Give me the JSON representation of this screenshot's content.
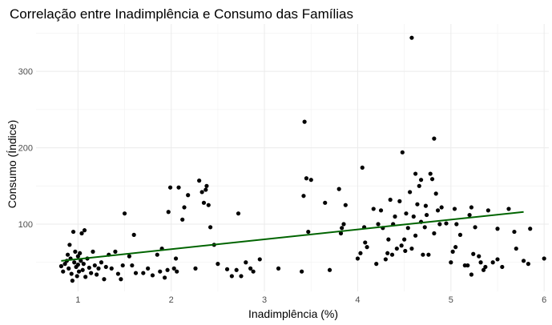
{
  "chart_data": {
    "type": "scatter",
    "title": "Correlação entre Inadimplência e Consumo das Famílias",
    "xlabel": "Inadimplência (%)",
    "ylabel": "Consumo (Índice)",
    "xlim": [
      0.55,
      6.05
    ],
    "ylim": [
      12,
      362
    ],
    "x_ticks": [
      1,
      2,
      3,
      4,
      5,
      6
    ],
    "y_ticks": [
      100,
      200,
      300
    ],
    "grid": true,
    "legend": "none",
    "point_color": "#000000",
    "trend_color": "#006400",
    "trend_line": {
      "x": [
        0.82,
        5.78
      ],
      "y": [
        52,
        116
      ]
    },
    "points": [
      [
        0.82,
        45
      ],
      [
        0.84,
        38
      ],
      [
        0.86,
        48
      ],
      [
        0.88,
        52
      ],
      [
        0.89,
        60
      ],
      [
        0.9,
        42
      ],
      [
        0.91,
        73
      ],
      [
        0.92,
        55
      ],
      [
        0.93,
        35
      ],
      [
        0.94,
        26
      ],
      [
        0.95,
        90
      ],
      [
        0.96,
        50
      ],
      [
        0.97,
        64
      ],
      [
        0.98,
        44
      ],
      [
        0.99,
        32
      ],
      [
        1.0,
        58
      ],
      [
        1.0,
        47
      ],
      [
        1.01,
        38
      ],
      [
        1.02,
        62
      ],
      [
        1.03,
        52
      ],
      [
        1.04,
        88
      ],
      [
        1.05,
        40
      ],
      [
        1.06,
        48
      ],
      [
        1.07,
        92
      ],
      [
        1.08,
        31
      ],
      [
        1.1,
        55
      ],
      [
        1.12,
        43
      ],
      [
        1.14,
        36
      ],
      [
        1.16,
        64
      ],
      [
        1.18,
        46
      ],
      [
        1.2,
        34
      ],
      [
        1.22,
        42
      ],
      [
        1.25,
        50
      ],
      [
        1.28,
        28
      ],
      [
        1.3,
        44
      ],
      [
        1.33,
        60
      ],
      [
        1.36,
        42
      ],
      [
        1.4,
        64
      ],
      [
        1.43,
        35
      ],
      [
        1.46,
        28
      ],
      [
        1.48,
        46
      ],
      [
        1.5,
        114
      ],
      [
        1.55,
        58
      ],
      [
        1.58,
        46
      ],
      [
        1.6,
        86
      ],
      [
        1.62,
        36
      ],
      [
        1.7,
        36
      ],
      [
        1.75,
        42
      ],
      [
        1.8,
        33
      ],
      [
        1.85,
        60
      ],
      [
        1.88,
        38
      ],
      [
        1.9,
        68
      ],
      [
        1.93,
        30
      ],
      [
        1.96,
        40
      ],
      [
        1.97,
        116
      ],
      [
        1.99,
        148
      ],
      [
        2.03,
        42
      ],
      [
        2.05,
        55
      ],
      [
        2.06,
        38
      ],
      [
        2.08,
        148
      ],
      [
        2.12,
        106
      ],
      [
        2.14,
        122
      ],
      [
        2.18,
        138
      ],
      [
        2.26,
        42
      ],
      [
        2.3,
        157
      ],
      [
        2.33,
        142
      ],
      [
        2.35,
        128
      ],
      [
        2.37,
        145
      ],
      [
        2.38,
        150
      ],
      [
        2.4,
        125
      ],
      [
        2.42,
        96
      ],
      [
        2.46,
        73
      ],
      [
        2.5,
        48
      ],
      [
        2.6,
        41
      ],
      [
        2.65,
        32
      ],
      [
        2.7,
        40
      ],
      [
        2.72,
        114
      ],
      [
        2.75,
        32
      ],
      [
        2.8,
        50
      ],
      [
        2.85,
        42
      ],
      [
        2.88,
        38
      ],
      [
        2.95,
        54
      ],
      [
        3.15,
        42
      ],
      [
        3.4,
        38
      ],
      [
        3.42,
        137
      ],
      [
        3.43,
        234
      ],
      [
        3.45,
        160
      ],
      [
        3.47,
        90
      ],
      [
        3.5,
        158
      ],
      [
        3.65,
        128
      ],
      [
        3.7,
        40
      ],
      [
        3.8,
        146
      ],
      [
        3.82,
        88
      ],
      [
        3.83,
        95
      ],
      [
        3.85,
        100
      ],
      [
        3.87,
        125
      ],
      [
        4.0,
        55
      ],
      [
        4.03,
        62
      ],
      [
        4.05,
        174
      ],
      [
        4.07,
        96
      ],
      [
        4.08,
        76
      ],
      [
        4.1,
        70
      ],
      [
        4.17,
        120
      ],
      [
        4.2,
        48
      ],
      [
        4.22,
        100
      ],
      [
        4.25,
        118
      ],
      [
        4.27,
        95
      ],
      [
        4.3,
        54
      ],
      [
        4.32,
        62
      ],
      [
        4.33,
        80
      ],
      [
        4.35,
        132
      ],
      [
        4.37,
        60
      ],
      [
        4.38,
        100
      ],
      [
        4.4,
        110
      ],
      [
        4.42,
        68
      ],
      [
        4.45,
        130
      ],
      [
        4.47,
        72
      ],
      [
        4.48,
        194
      ],
      [
        4.5,
        80
      ],
      [
        4.51,
        65
      ],
      [
        4.52,
        114
      ],
      [
        4.54,
        95
      ],
      [
        4.56,
        142
      ],
      [
        4.58,
        68
      ],
      [
        4.6,
        110
      ],
      [
        4.62,
        85
      ],
      [
        4.64,
        126
      ],
      [
        4.66,
        150
      ],
      [
        4.68,
        103
      ],
      [
        4.7,
        60
      ],
      [
        4.72,
        96
      ],
      [
        4.74,
        112
      ],
      [
        4.76,
        60
      ],
      [
        4.78,
        166
      ],
      [
        4.8,
        159
      ],
      [
        4.82,
        88
      ],
      [
        4.84,
        140
      ],
      [
        4.86,
        118
      ],
      [
        4.88,
        100
      ],
      [
        4.9,
        122
      ],
      [
        4.95,
        101
      ],
      [
        5.0,
        50
      ],
      [
        5.02,
        64
      ],
      [
        5.04,
        120
      ],
      [
        5.06,
        100
      ],
      [
        5.1,
        86
      ],
      [
        5.15,
        46
      ],
      [
        5.18,
        46
      ],
      [
        5.2,
        112
      ],
      [
        5.22,
        122
      ],
      [
        5.24,
        61
      ],
      [
        5.26,
        96
      ],
      [
        5.3,
        58
      ],
      [
        5.32,
        50
      ],
      [
        5.35,
        40
      ],
      [
        5.37,
        44
      ],
      [
        5.4,
        118
      ],
      [
        5.45,
        50
      ],
      [
        5.5,
        94
      ],
      [
        5.55,
        44
      ],
      [
        5.62,
        120
      ],
      [
        5.68,
        90
      ],
      [
        5.78,
        52
      ],
      [
        5.83,
        48
      ],
      [
        4.58,
        344
      ],
      [
        4.82,
        212
      ],
      [
        4.62,
        166
      ],
      [
        4.68,
        158
      ],
      [
        4.73,
        124
      ],
      [
        5.05,
        70
      ],
      [
        5.22,
        34
      ],
      [
        5.5,
        54
      ],
      [
        5.7,
        68
      ],
      [
        5.85,
        94
      ],
      [
        6.0,
        55
      ]
    ]
  }
}
